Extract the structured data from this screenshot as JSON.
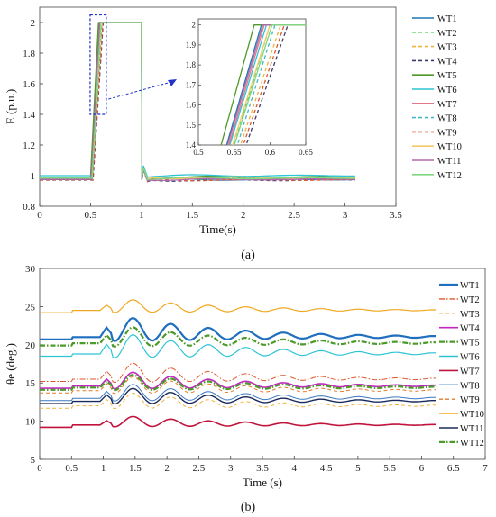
{
  "chart_data": [
    {
      "type": "line",
      "panel_label": "(a)",
      "xlabel": "Time(s)",
      "ylabel": "E (p.u.)",
      "xlim": [
        0,
        3.5
      ],
      "ylim": [
        0.8,
        2.1
      ],
      "xticks": [
        "0",
        "0.5",
        "1",
        "1.5",
        "2",
        "2.5",
        "3",
        "3.5"
      ],
      "yticks": [
        "0.8",
        "1",
        "1.2",
        "1.4",
        "1.6",
        "1.8",
        "2"
      ],
      "grid": false,
      "legend": "right",
      "series": [
        {
          "name": "WT1",
          "color": "#1f77b4",
          "dash": "solid",
          "base": 0.975,
          "rise_start": 0.505,
          "rise_end": 0.588,
          "decay": 0.975
        },
        {
          "name": "WT2",
          "color": "#4fd35a",
          "dash": "dashed",
          "base": 0.98,
          "rise_start": 0.515,
          "rise_end": 0.6,
          "decay": 0.98
        },
        {
          "name": "WT3",
          "color": "#f0b23a",
          "dash": "dashed",
          "base": 0.985,
          "rise_start": 0.52,
          "rise_end": 0.615,
          "decay": 0.985
        },
        {
          "name": "WT4",
          "color": "#3a3a6e",
          "dash": "dashed",
          "base": 0.97,
          "rise_start": 0.525,
          "rise_end": 0.625,
          "decay": 0.97
        },
        {
          "name": "WT5",
          "color": "#4c9a2a",
          "dash": "solid",
          "base": 0.99,
          "rise_start": 0.5,
          "rise_end": 0.578,
          "decay": 0.99
        },
        {
          "name": "WT6",
          "color": "#2ec4d6",
          "dash": "solid",
          "base": 1.0,
          "rise_start": 0.51,
          "rise_end": 0.595,
          "decay": 1.0
        },
        {
          "name": "WT7",
          "color": "#e07a8a",
          "dash": "solid",
          "base": 0.978,
          "rise_start": 0.508,
          "rise_end": 0.592,
          "decay": 0.978
        },
        {
          "name": "WT8",
          "color": "#45b7c9",
          "dash": "dashed",
          "base": 0.982,
          "rise_start": 0.518,
          "rise_end": 0.607,
          "decay": 0.982
        },
        {
          "name": "WT9",
          "color": "#e0562a",
          "dash": "dashed",
          "base": 0.972,
          "rise_start": 0.522,
          "rise_end": 0.62,
          "decay": 0.972
        },
        {
          "name": "WT10",
          "color": "#f5c96a",
          "dash": "solid",
          "base": 0.987,
          "rise_start": 0.512,
          "rise_end": 0.6,
          "decay": 0.987
        },
        {
          "name": "WT11",
          "color": "#b06aa8",
          "dash": "solid",
          "base": 0.976,
          "rise_start": 0.506,
          "rise_end": 0.59,
          "decay": 0.976
        },
        {
          "name": "WT12",
          "color": "#7fd87f",
          "dash": "solid",
          "base": 0.984,
          "rise_start": 0.514,
          "rise_end": 0.603,
          "decay": 0.984
        }
      ],
      "inset": {
        "xlim": [
          0.5,
          0.65
        ],
        "ylim": [
          1.4,
          2.03
        ],
        "xticks": [
          "0.5",
          "0.55",
          "0.6",
          "0.65"
        ],
        "yticks": [
          "1.4",
          "1.5",
          "1.6",
          "1.7",
          "1.8",
          "1.9",
          "2"
        ],
        "zoom_box_x": [
          0.5,
          0.65
        ],
        "zoom_box_y": [
          1.4,
          2.05
        ]
      }
    },
    {
      "type": "line",
      "panel_label": "(b)",
      "xlabel": "Time (s)",
      "ylabel": "θe (deg.)",
      "xlim": [
        0,
        7
      ],
      "ylim": [
        5,
        30
      ],
      "xticks": [
        "0",
        "0.5",
        "1",
        "1.5",
        "2",
        "2.5",
        "3",
        "3.5",
        "4",
        "4.5",
        "5",
        "5.5",
        "6",
        "6.5",
        "7"
      ],
      "yticks": [
        "5",
        "10",
        "15",
        "20",
        "25",
        "30"
      ],
      "grid": false,
      "legend": "right",
      "series": [
        {
          "name": "WT1",
          "color": "#1f6fbf",
          "dash": "solid",
          "width": 2.2,
          "base": 21.0,
          "amp": 3.6
        },
        {
          "name": "WT2",
          "color": "#e0562a",
          "dash": "dashdot",
          "width": 1.0,
          "base": 15.5,
          "amp": 3.0
        },
        {
          "name": "WT3",
          "color": "#f0b23a",
          "dash": "dashed",
          "width": 1.0,
          "base": 12.0,
          "amp": 2.4
        },
        {
          "name": "WT4",
          "color": "#c02ac0",
          "dash": "solid",
          "width": 1.6,
          "base": 14.6,
          "amp": 2.6
        },
        {
          "name": "WT5",
          "color": "#4c9a2a",
          "dash": "dashdot",
          "width": 2.2,
          "base": 20.2,
          "amp": 3.0
        },
        {
          "name": "WT6",
          "color": "#2ec4d6",
          "dash": "solid",
          "width": 1.2,
          "base": 18.8,
          "amp": 3.6
        },
        {
          "name": "WT7",
          "color": "#c0143c",
          "dash": "solid",
          "width": 1.6,
          "base": 9.5,
          "amp": 1.6
        },
        {
          "name": "WT8",
          "color": "#3a78c0",
          "dash": "solid",
          "width": 1.0,
          "base": 13.0,
          "amp": 2.6
        },
        {
          "name": "WT9",
          "color": "#e07a2a",
          "dash": "dashed",
          "width": 1.0,
          "base": 14.0,
          "amp": 2.6
        },
        {
          "name": "WT10",
          "color": "#f0a820",
          "dash": "solid",
          "width": 1.2,
          "base": 24.5,
          "amp": 2.0
        },
        {
          "name": "WT11",
          "color": "#1a2a5a",
          "dash": "solid",
          "width": 1.4,
          "base": 12.6,
          "amp": 2.4
        },
        {
          "name": "WT12",
          "color": "#4c9a2a",
          "dash": "dashdot",
          "width": 2.2,
          "base": 14.4,
          "amp": 2.4
        }
      ]
    }
  ]
}
